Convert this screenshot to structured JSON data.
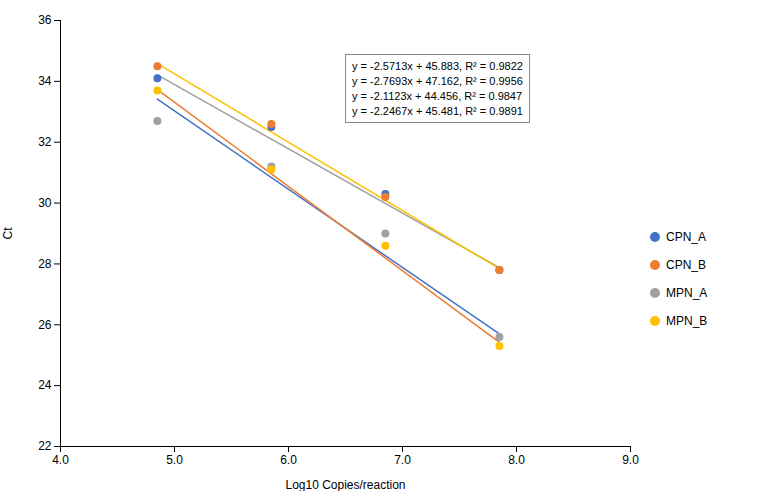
{
  "chart_data": {
    "type": "scatter",
    "xlabel": "Log10 Copies/reaction",
    "ylabel": "Ct",
    "xlim": [
      4,
      9
    ],
    "ylim": [
      22,
      36
    ],
    "xticks": [
      4,
      5,
      6,
      7,
      8,
      9
    ],
    "yticks": [
      22,
      24,
      26,
      28,
      30,
      32,
      34,
      36
    ],
    "grid": false,
    "legend": "right",
    "annotations": [
      "y = -2.5713x + 45.883, R² = 0.9822",
      "y = -2.7693x + 47.162, R² = 0.9956",
      "y = -2.1123x + 44.456, R² = 0.9847",
      "y = -2.2467x + 45.481, R² = 0.9891"
    ],
    "series": [
      {
        "name": "CPN_A",
        "color": "#4472C4",
        "marker": "circle",
        "x": [
          4.85,
          5.85,
          6.85,
          7.85
        ],
        "values": [
          34.1,
          32.5,
          30.3,
          27.8
        ],
        "fit": {
          "x": [
            4.85,
            7.85
          ],
          "values": [
            33.412195,
            25.698295
          ]
        }
      },
      {
        "name": "CPN_B",
        "color": "#ED7D31",
        "marker": "circle",
        "x": [
          4.85,
          5.85,
          6.85,
          7.85
        ],
        "values": [
          34.5,
          32.6,
          30.2,
          27.8
        ],
        "fit": {
          "x": [
            4.85,
            7.85
          ],
          "values": [
            33.730895,
            25.422995
          ]
        }
      },
      {
        "name": "MPN_A",
        "color": "#A0A0A0",
        "marker": "circle",
        "x": [
          4.85,
          5.85,
          6.85,
          7.85
        ],
        "values": [
          32.7,
          31.2,
          29.0,
          25.6
        ],
        "fit": {
          "x": [
            4.85,
            7.85
          ],
          "values": [
            34.211345,
            27.874445
          ]
        }
      },
      {
        "name": "MPN_B",
        "color": "#FFC000",
        "marker": "circle",
        "x": [
          4.85,
          5.85,
          6.85,
          7.85
        ],
        "values": [
          33.7,
          31.1,
          28.6,
          25.3
        ],
        "fit": {
          "x": [
            4.85,
            7.85
          ],
          "values": [
            34.584505,
            27.844405
          ]
        }
      }
    ]
  }
}
